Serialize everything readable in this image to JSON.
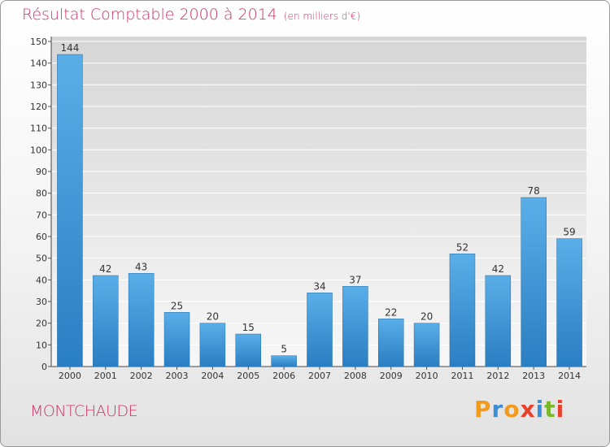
{
  "chart_data": {
    "type": "bar",
    "title": "Résultat Comptable 2000 à 2014",
    "subtitle": "(en milliers d'€)",
    "categories": [
      "2000",
      "2001",
      "2002",
      "2003",
      "2004",
      "2005",
      "2006",
      "2007",
      "2008",
      "2009",
      "2010",
      "2011",
      "2012",
      "2013",
      "2014"
    ],
    "values": [
      144,
      42,
      43,
      25,
      20,
      15,
      5,
      34,
      37,
      22,
      20,
      52,
      42,
      78,
      59
    ],
    "ylim": [
      0,
      150
    ],
    "yticks": [
      0,
      10,
      20,
      30,
      40,
      50,
      60,
      70,
      80,
      90,
      100,
      110,
      120,
      130,
      140,
      150
    ],
    "xlabel": "",
    "ylabel": "",
    "grid": true,
    "colors": {
      "bar_light": "#5aaee8",
      "bar_dark": "#2a7ec2",
      "title": "#cc3366"
    }
  },
  "place_name": "MONTCHAUDE",
  "logo": {
    "letters": [
      "P",
      "r",
      "o",
      "x",
      "i",
      "t",
      "i"
    ],
    "colors": [
      "#f29a1c",
      "#3b8fd6",
      "#f29a1c",
      "#e8412c",
      "#3b8fd6",
      "#7ab829",
      "#e8412c"
    ]
  }
}
